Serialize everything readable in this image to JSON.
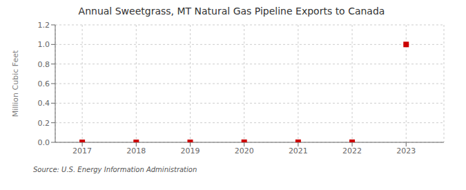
{
  "chart_data": {
    "type": "scatter",
    "title": "Annual Sweetgrass, MT Natural Gas Pipeline Exports to Canada",
    "ylabel": "Million Cubic Feet",
    "source": "Source: U.S. Energy Information Administration",
    "x": [
      2017,
      2018,
      2019,
      2020,
      2021,
      2022,
      2023
    ],
    "values": [
      0.0,
      0.0,
      0.0,
      0.001,
      0.001,
      0.001,
      1.0
    ],
    "xlim": [
      2016.5,
      2023.7
    ],
    "xticks": [
      2017,
      2018,
      2019,
      2020,
      2021,
      2022,
      2023
    ],
    "ylim": [
      0.0,
      1.2
    ],
    "yticks": [
      {
        "value": 0.0,
        "label": "0.0"
      },
      0.2,
      0.4,
      0.6,
      0.8,
      {
        "value": 1.0,
        "label": "1.0"
      },
      1.2
    ],
    "color": "#cc0000",
    "marker": "square",
    "grid": true
  }
}
